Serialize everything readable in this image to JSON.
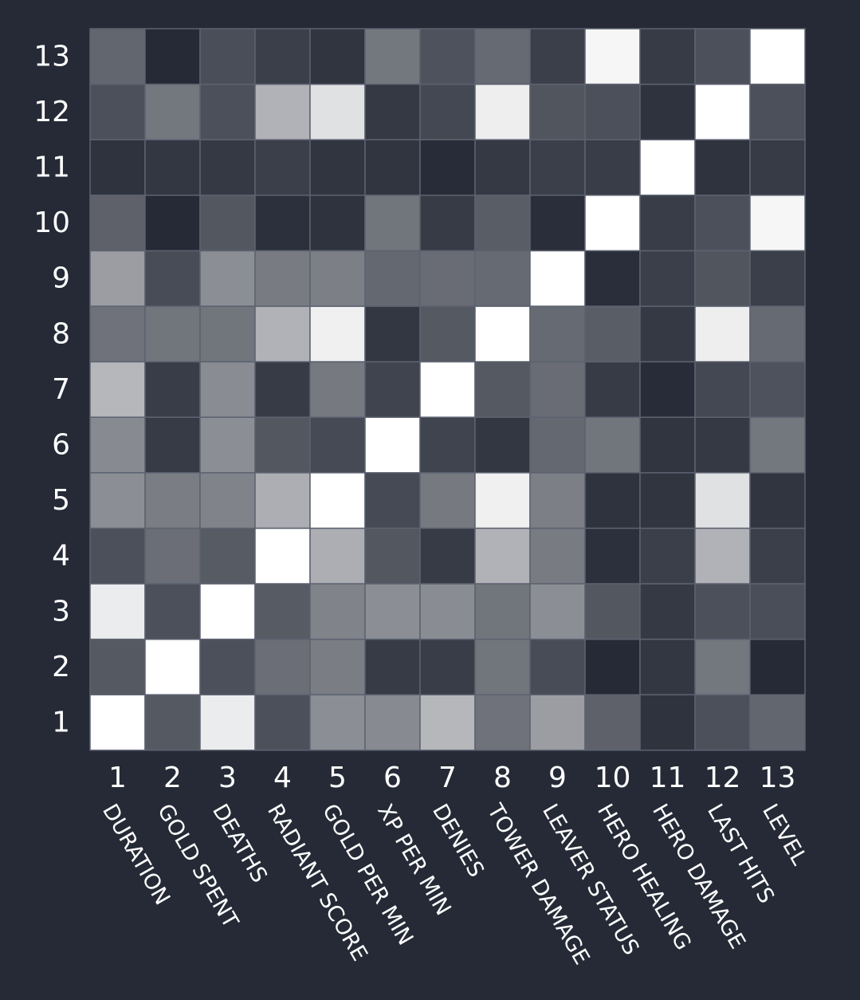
{
  "chart_data": {
    "type": "heatmap",
    "title": "",
    "xlabel": "",
    "ylabel": "",
    "x_ticks": [
      "1",
      "2",
      "3",
      "4",
      "5",
      "6",
      "7",
      "8",
      "9",
      "10",
      "11",
      "12",
      "13"
    ],
    "y_ticks": [
      "1",
      "2",
      "3",
      "4",
      "5",
      "6",
      "7",
      "8",
      "9",
      "10",
      "11",
      "12",
      "13"
    ],
    "variables": [
      "DURATION",
      "GOLD SPENT",
      "DEATHS",
      "RADIANT SCORE",
      "GOLD PER MIN",
      "XP PER MIN",
      "DENIES",
      "TOWER DAMAGE",
      "LEAVER STATUS",
      "HERO HEALING",
      "HERO DAMAGE",
      "LAST HITS",
      "LEVEL"
    ],
    "color_low": "#252a36",
    "color_high": "#ffffff",
    "grid_color": "#5d6270",
    "value_range": [
      0,
      1
    ],
    "matrix": [
      [
        1.0,
        0.22,
        0.91,
        0.18,
        0.47,
        0.45,
        0.66,
        0.34,
        0.54,
        0.26,
        0.04,
        0.18,
        0.28
      ],
      [
        0.22,
        1.0,
        0.18,
        0.32,
        0.39,
        0.08,
        0.09,
        0.35,
        0.16,
        0.0,
        0.06,
        0.36,
        0.0
      ],
      [
        0.91,
        0.18,
        1.0,
        0.23,
        0.42,
        0.47,
        0.46,
        0.35,
        0.47,
        0.21,
        0.07,
        0.18,
        0.17
      ],
      [
        0.18,
        0.32,
        0.23,
        1.0,
        0.62,
        0.21,
        0.08,
        0.64,
        0.38,
        0.03,
        0.1,
        0.64,
        0.1
      ],
      [
        0.47,
        0.39,
        0.42,
        0.62,
        1.0,
        0.15,
        0.37,
        0.93,
        0.4,
        0.04,
        0.05,
        0.86,
        0.05
      ],
      [
        0.45,
        0.08,
        0.47,
        0.21,
        0.15,
        1.0,
        0.12,
        0.06,
        0.29,
        0.35,
        0.05,
        0.07,
        0.36
      ],
      [
        0.66,
        0.09,
        0.46,
        0.08,
        0.37,
        0.12,
        1.0,
        0.22,
        0.31,
        0.08,
        0.01,
        0.14,
        0.19
      ],
      [
        0.34,
        0.35,
        0.35,
        0.64,
        0.93,
        0.06,
        0.22,
        1.0,
        0.3,
        0.24,
        0.07,
        0.92,
        0.3
      ],
      [
        0.54,
        0.16,
        0.47,
        0.38,
        0.4,
        0.29,
        0.31,
        0.3,
        1.0,
        0.02,
        0.1,
        0.2,
        0.1
      ],
      [
        0.26,
        0.0,
        0.21,
        0.03,
        0.04,
        0.35,
        0.08,
        0.24,
        0.02,
        1.0,
        0.09,
        0.18,
        0.96
      ],
      [
        0.04,
        0.06,
        0.07,
        0.1,
        0.05,
        0.05,
        0.01,
        0.07,
        0.1,
        0.09,
        1.0,
        0.04,
        0.08
      ],
      [
        0.18,
        0.36,
        0.18,
        0.64,
        0.86,
        0.07,
        0.14,
        0.92,
        0.2,
        0.18,
        0.04,
        1.0,
        0.18
      ],
      [
        0.28,
        0.0,
        0.17,
        0.1,
        0.05,
        0.36,
        0.19,
        0.3,
        0.1,
        0.96,
        0.08,
        0.18,
        1.0
      ]
    ]
  }
}
